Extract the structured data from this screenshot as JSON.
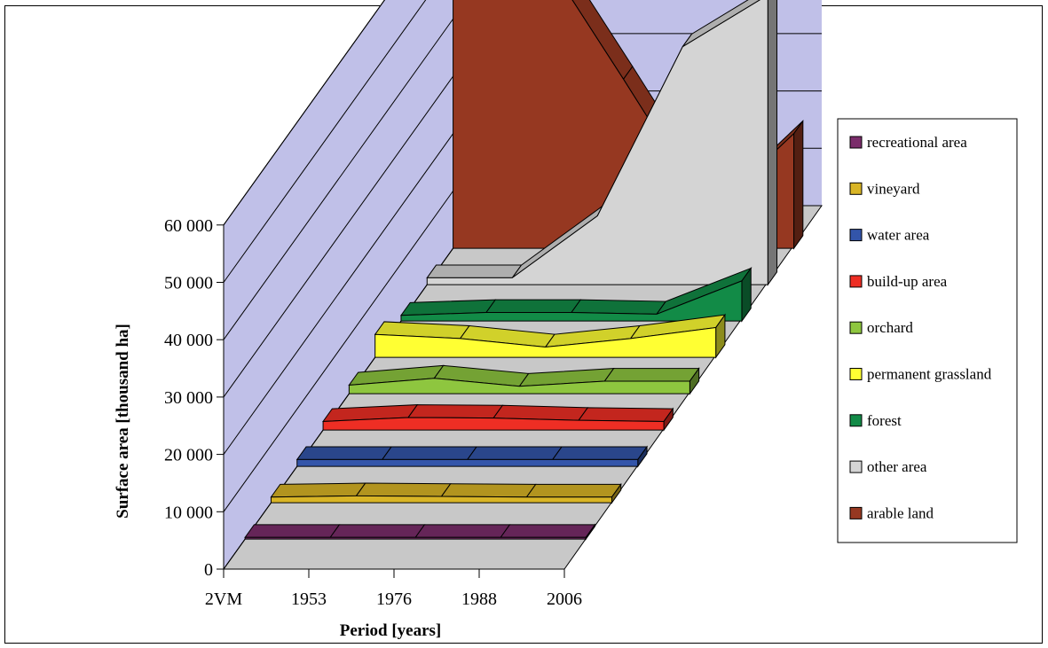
{
  "chart_data": {
    "type": "area",
    "variant": "3d-area",
    "xlabel": "Period [years]",
    "ylabel": "Surface area [thousand ha]",
    "categories": [
      "2VM",
      "1953",
      "1976",
      "1988",
      "2006"
    ],
    "y_ticks": [
      "0",
      "10 000",
      "20 000",
      "30 000",
      "40 000",
      "50 000",
      "60 000"
    ],
    "ylim": [
      0,
      60000
    ],
    "legend_position": "right",
    "series": [
      {
        "name": "recreational area",
        "color": "#7b2d6b",
        "values": [
          300,
          300,
          300,
          300,
          300
        ]
      },
      {
        "name": "vineyard",
        "color": "#d9b526",
        "values": [
          1000,
          1200,
          1100,
          1000,
          1000
        ]
      },
      {
        "name": "water area",
        "color": "#3355aa",
        "values": [
          1200,
          1200,
          1200,
          1200,
          1200
        ]
      },
      {
        "name": "build-up area",
        "color": "#ee2e24",
        "values": [
          1500,
          2200,
          2100,
          1700,
          1500
        ]
      },
      {
        "name": "orchard",
        "color": "#8ec63f",
        "values": [
          1500,
          2700,
          1300,
          2200,
          2200
        ]
      },
      {
        "name": "permanent grassland",
        "color": "#ffff33",
        "values": [
          4000,
          3300,
          1800,
          3300,
          5200
        ]
      },
      {
        "name": "forest",
        "color": "#128b47",
        "values": [
          1000,
          1500,
          1500,
          1200,
          7000
        ]
      },
      {
        "name": "other area",
        "color": "#d4d4d4",
        "values": [
          1200,
          1200,
          12000,
          41500,
          50500
        ]
      },
      {
        "name": "arable land",
        "color": "#963821",
        "values": [
          56000,
          52500,
          29500,
          6000,
          20000
        ]
      }
    ],
    "legend_order": [
      "recreational area",
      "vineyard",
      "water area",
      "build-up area",
      "orchard",
      "permanent grassland",
      "forest",
      "other area",
      "arable land"
    ]
  }
}
